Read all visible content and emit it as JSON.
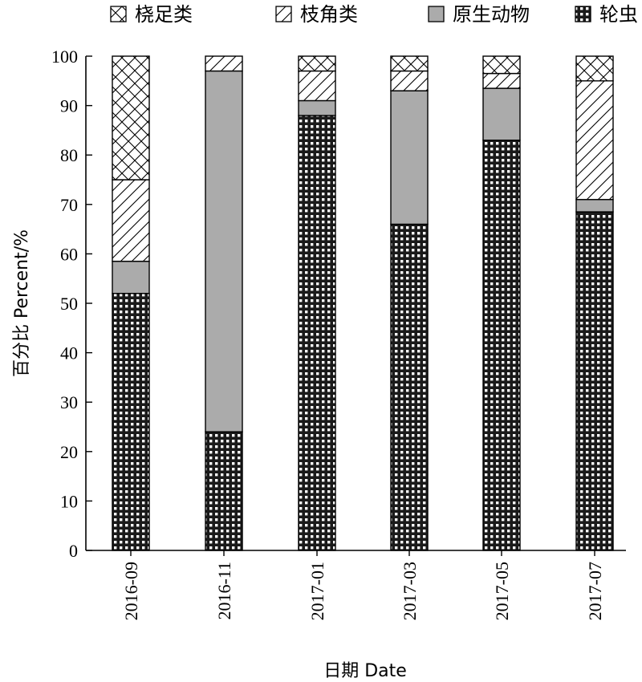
{
  "chart_data": {
    "type": "bar",
    "stacked": true,
    "title": "",
    "xlabel": "日期 Date",
    "ylabel": "百分比 Percent/%",
    "ylim": [
      0,
      100
    ],
    "yticks": [
      0,
      10,
      20,
      30,
      40,
      50,
      60,
      70,
      80,
      90,
      100
    ],
    "categories": [
      "2016-09",
      "2016-11",
      "2017-01",
      "2017-03",
      "2017-05",
      "2017-07"
    ],
    "series": [
      {
        "name": "轮虫",
        "pattern": "grid",
        "values": [
          52,
          24,
          88,
          66,
          83,
          68.5
        ]
      },
      {
        "name": "原生动物",
        "pattern": "gray",
        "color": "#ababab",
        "values": [
          6.5,
          73,
          3,
          27,
          10.5,
          2.5
        ]
      },
      {
        "name": "枝角类",
        "pattern": "diagonal",
        "values": [
          16.5,
          3,
          6,
          4,
          3,
          24
        ]
      },
      {
        "name": "桡足类",
        "pattern": "crosshatch",
        "values": [
          25,
          0,
          3,
          3,
          3.5,
          5
        ]
      }
    ],
    "legend_order": [
      "桡足类",
      "枝角类",
      "原生动物",
      "轮虫"
    ],
    "legend_position": "top",
    "grid": false
  }
}
